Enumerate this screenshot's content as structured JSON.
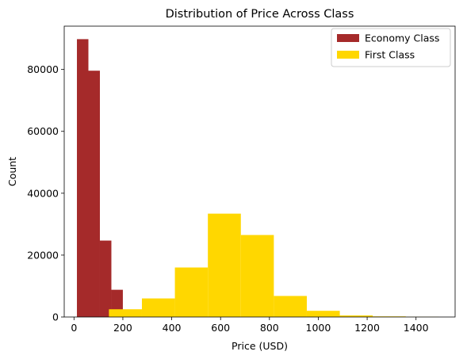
{
  "chart_data": {
    "type": "bar",
    "subtype": "histogram",
    "title": "Distribution of Price Across Class",
    "xlabel": "Price (USD)",
    "ylabel": "Count",
    "xlim": [
      -40,
      1560
    ],
    "ylim": [
      0,
      94000
    ],
    "xticks": [
      0,
      200,
      400,
      600,
      800,
      1000,
      1200,
      1400
    ],
    "yticks": [
      0,
      20000,
      40000,
      60000,
      80000
    ],
    "grid": false,
    "legend_position": "top-right",
    "series": [
      {
        "name": "Economy Class",
        "color": "#A52A2A",
        "bins": [
          {
            "x0": 12,
            "x1": 59,
            "count": 89800
          },
          {
            "x0": 59,
            "x1": 106,
            "count": 79600
          },
          {
            "x0": 106,
            "x1": 153,
            "count": 24700
          },
          {
            "x0": 153,
            "x1": 200,
            "count": 8800
          }
        ]
      },
      {
        "name": "First Class",
        "color": "#FFD700",
        "bins": [
          {
            "x0": 143,
            "x1": 278,
            "count": 2500
          },
          {
            "x0": 278,
            "x1": 413,
            "count": 6000
          },
          {
            "x0": 413,
            "x1": 548,
            "count": 16000
          },
          {
            "x0": 548,
            "x1": 683,
            "count": 33400
          },
          {
            "x0": 683,
            "x1": 818,
            "count": 26500
          },
          {
            "x0": 818,
            "x1": 953,
            "count": 6800
          },
          {
            "x0": 953,
            "x1": 1088,
            "count": 2000
          },
          {
            "x0": 1088,
            "x1": 1223,
            "count": 500
          },
          {
            "x0": 1223,
            "x1": 1358,
            "count": 200
          },
          {
            "x0": 1358,
            "x1": 1493,
            "count": 50
          }
        ]
      }
    ]
  }
}
